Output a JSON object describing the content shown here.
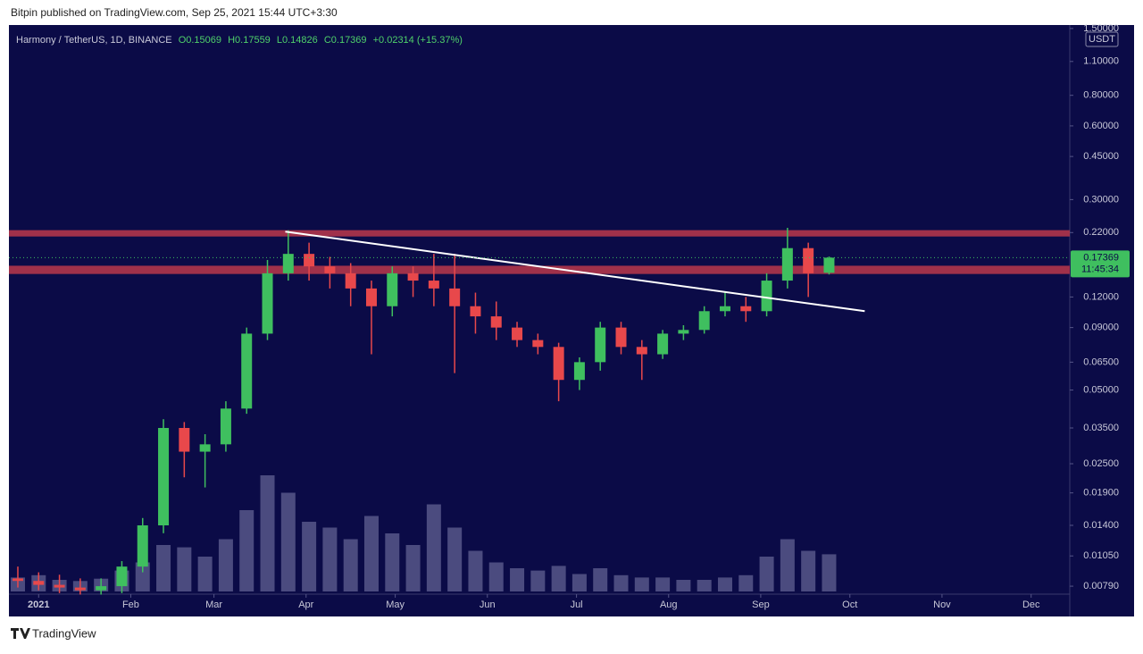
{
  "header": {
    "published": "Bitpin published on TradingView.com, Sep 25, 2021 15:44 UTC+3:30"
  },
  "footer": {
    "brand": "TradingView"
  },
  "chart_data": {
    "type": "candlestick",
    "symbol": "Harmony / TetherUS, 1D, BINANCE",
    "ohlc_text": [
      "O0.15069",
      "H0.17559",
      "L0.14826",
      "C0.17369",
      "+0.02314 (+15.37%)"
    ],
    "currency": "USDT",
    "log_scale": true,
    "up_color": "#3fbf5f",
    "down_color": "#e8484b",
    "x": [
      -7,
      0,
      7,
      14,
      21,
      28,
      35,
      42,
      49,
      56,
      63,
      70,
      77,
      84,
      91,
      98,
      105,
      112,
      119,
      126,
      133,
      140,
      147,
      154,
      161,
      168,
      175,
      182,
      189,
      196,
      203,
      210,
      217,
      224,
      231,
      238,
      245,
      252,
      259,
      266
    ],
    "open": [
      0.0085,
      0.0083,
      0.008,
      0.0078,
      0.0076,
      0.0079,
      0.0095,
      0.014,
      0.035,
      0.028,
      0.03,
      0.042,
      0.085,
      0.15,
      0.18,
      0.16,
      0.15,
      0.13,
      0.11,
      0.15,
      0.14,
      0.13,
      0.11,
      0.1,
      0.09,
      0.08,
      0.075,
      0.055,
      0.065,
      0.09,
      0.075,
      0.07,
      0.085,
      0.088,
      0.105,
      0.11,
      0.105,
      0.14,
      0.19,
      0.15069
    ],
    "high": [
      0.0095,
      0.009,
      0.0088,
      0.0085,
      0.0085,
      0.01,
      0.015,
      0.038,
      0.037,
      0.033,
      0.045,
      0.09,
      0.17,
      0.225,
      0.2,
      0.175,
      0.165,
      0.14,
      0.16,
      0.16,
      0.18,
      0.18,
      0.125,
      0.115,
      0.095,
      0.085,
      0.078,
      0.068,
      0.095,
      0.095,
      0.08,
      0.088,
      0.092,
      0.11,
      0.125,
      0.12,
      0.15,
      0.23,
      0.2,
      0.17559
    ],
    "low": [
      0.0078,
      0.0076,
      0.0074,
      0.0073,
      0.0073,
      0.0074,
      0.009,
      0.013,
      0.022,
      0.02,
      0.028,
      0.04,
      0.08,
      0.14,
      0.14,
      0.13,
      0.11,
      0.07,
      0.1,
      0.12,
      0.11,
      0.0586,
      0.085,
      0.08,
      0.075,
      0.07,
      0.045,
      0.05,
      0.06,
      0.07,
      0.055,
      0.067,
      0.08,
      0.085,
      0.1,
      0.095,
      0.1,
      0.13,
      0.12,
      0.14826
    ],
    "close": [
      0.0083,
      0.008,
      0.0078,
      0.0076,
      0.0079,
      0.0095,
      0.014,
      0.035,
      0.028,
      0.03,
      0.042,
      0.085,
      0.15,
      0.18,
      0.16,
      0.15,
      0.13,
      0.11,
      0.15,
      0.14,
      0.13,
      0.11,
      0.1,
      0.09,
      0.08,
      0.075,
      0.055,
      0.065,
      0.09,
      0.075,
      0.07,
      0.085,
      0.088,
      0.105,
      0.11,
      0.105,
      0.14,
      0.19,
      0.15,
      0.17369
    ],
    "volume": [
      12,
      14,
      10,
      9,
      11,
      18,
      25,
      40,
      38,
      30,
      45,
      70,
      100,
      85,
      60,
      55,
      45,
      65,
      50,
      40,
      75,
      55,
      35,
      25,
      20,
      18,
      22,
      15,
      20,
      14,
      12,
      12,
      10,
      10,
      12,
      14,
      30,
      45,
      35,
      32
    ],
    "volume_lim": [
      0,
      100
    ],
    "xlim": [
      -10,
      347
    ],
    "xticks": [
      {
        "value": 0,
        "label": "2021"
      },
      {
        "value": 31,
        "label": "Feb"
      },
      {
        "value": 59,
        "label": "Mar"
      },
      {
        "value": 90,
        "label": "Apr"
      },
      {
        "value": 120,
        "label": "May"
      },
      {
        "value": 151,
        "label": "Jun"
      },
      {
        "value": 181,
        "label": "Jul"
      },
      {
        "value": 212,
        "label": "Aug"
      },
      {
        "value": 243,
        "label": "Sep"
      },
      {
        "value": 273,
        "label": "Oct"
      },
      {
        "value": 304,
        "label": "Nov"
      },
      {
        "value": 334,
        "label": "Dec"
      }
    ],
    "ylim": [
      0.00733,
      1.55
    ],
    "yticks": [
      {
        "value": 1.5,
        "label": "1.50000"
      },
      {
        "value": 1.1,
        "label": "1.10000"
      },
      {
        "value": 0.8,
        "label": "0.80000"
      },
      {
        "value": 0.6,
        "label": "0.60000"
      },
      {
        "value": 0.45,
        "label": "0.45000"
      },
      {
        "value": 0.3,
        "label": "0.30000"
      },
      {
        "value": 0.22,
        "label": "0.22000"
      },
      {
        "value": 0.12,
        "label": "0.12000"
      },
      {
        "value": 0.09,
        "label": "0.09000"
      },
      {
        "value": 0.065,
        "label": "0.06500"
      },
      {
        "value": 0.05,
        "label": "0.05000"
      },
      {
        "value": 0.035,
        "label": "0.03500"
      },
      {
        "value": 0.025,
        "label": "0.02500"
      },
      {
        "value": 0.019,
        "label": "0.01900"
      },
      {
        "value": 0.014,
        "label": "0.01400"
      },
      {
        "value": 0.0105,
        "label": "0.01050"
      },
      {
        "value": 0.0079,
        "label": "0.00790"
      }
    ],
    "last_price": 0.17369,
    "countdown": "11:45:34",
    "zones": [
      {
        "low": 0.212,
        "high": 0.225,
        "color": "#b0354a"
      },
      {
        "low": 0.149,
        "high": 0.161,
        "color": "#b0354a"
      }
    ],
    "trendline": {
      "x": [
        83,
        278
      ],
      "y": [
        0.222,
        0.105
      ],
      "color": "#ffffff"
    }
  }
}
